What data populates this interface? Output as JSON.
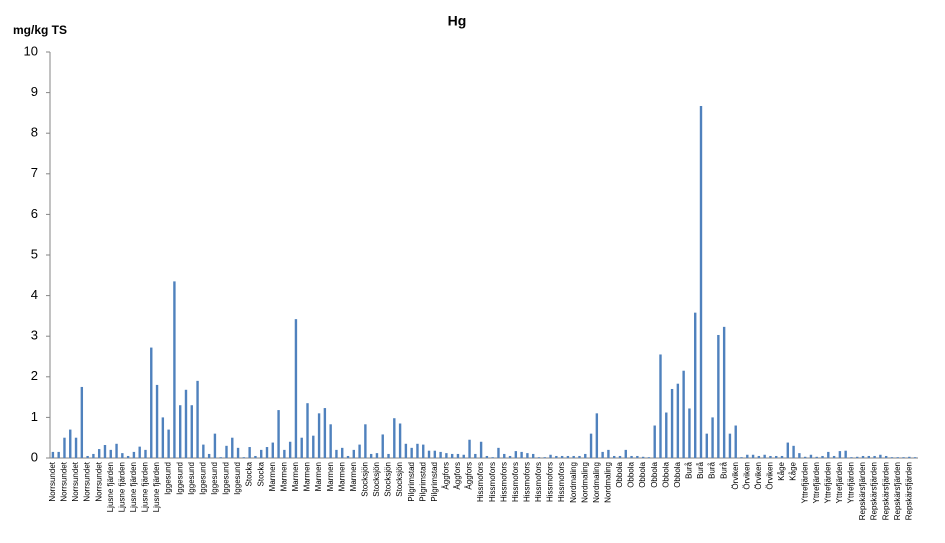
{
  "chart_data": {
    "type": "bar",
    "title": "Hg",
    "y_label": "mg/kg TS",
    "color": "#4f81bd",
    "grid": false,
    "ylim": [
      0,
      10
    ],
    "yticks": [
      0,
      1,
      2,
      3,
      4,
      5,
      6,
      7,
      8,
      9,
      10
    ],
    "categories": [
      "Norrsundet",
      null,
      "Norrsundet",
      null,
      "Norrsundet",
      null,
      "Norrsundet",
      null,
      "Norrsundet",
      null,
      "Ljusne fjärden",
      null,
      "Ljusne fjärden",
      null,
      "Ljusne fjärden",
      null,
      "Ljusne fjärden",
      null,
      "Ljusne fjärden",
      null,
      "Iggesund",
      null,
      "Iggesund",
      null,
      "Iggesund",
      null,
      "Iggesund",
      null,
      "Iggesund",
      null,
      "Iggesund",
      null,
      "Iggesund",
      null,
      "Stocka",
      null,
      "Stocka",
      null,
      "Marmen",
      null,
      "Marmen",
      null,
      "Marmen",
      null,
      "Marmen",
      null,
      "Marmen",
      null,
      "Marmen",
      null,
      "Marmen",
      null,
      "Marmen",
      null,
      "Stocksjön",
      null,
      "Stocksjön",
      null,
      "Stocksjön",
      null,
      "Stocksjön",
      null,
      "Pilgrimstad",
      null,
      "Pilgrimstad",
      null,
      "Pilgrimstad",
      null,
      "Äggfors",
      null,
      "Äggfors",
      null,
      "Äggfors",
      null,
      "Hissmofors",
      null,
      "Hissmofors",
      null,
      "Hissmofors",
      null,
      "Hissmofors",
      null,
      "Hissmofors",
      null,
      "Hissmofors",
      null,
      "Hissmofors",
      null,
      "Hissmofors",
      null,
      "Nordmaling",
      null,
      "Nordmaling",
      null,
      "Nordmaling",
      null,
      "Nordmaling",
      null,
      "Obbola",
      null,
      "Obbola",
      null,
      "Obbola",
      null,
      "Obbola",
      null,
      "Obbola",
      null,
      "Obbola",
      null,
      "Burå",
      null,
      "Burå",
      null,
      "Burå",
      null,
      "Burå",
      null,
      "Örviken",
      null,
      "Örviken",
      null,
      "Örviken",
      null,
      "Örviken",
      null,
      "Kåge",
      null,
      "Kåge",
      null,
      "Yttrefjärden",
      null,
      "Yttrefjärden",
      null,
      "Yttrefjärden",
      null,
      "Yttrefjärden",
      null,
      "Yttrefjärden",
      null,
      "Repskärsfjärden",
      null,
      "Repskärsfjärden",
      null,
      "Repskärsfjärden",
      null,
      "Repskärsfjärden",
      null,
      "Repskärsfjärden",
      null
    ],
    "values": [
      0.15,
      0.15,
      0.5,
      0.7,
      0.5,
      1.75,
      0.05,
      0.1,
      0.22,
      0.32,
      0.2,
      0.35,
      0.12,
      0.05,
      0.15,
      0.28,
      0.2,
      2.72,
      1.8,
      1.0,
      0.7,
      4.35,
      1.3,
      1.68,
      1.3,
      1.9,
      0.33,
      0.1,
      0.6,
      0.02,
      0.3,
      0.5,
      0.25,
      0.02,
      0.27,
      0.05,
      0.2,
      0.27,
      0.38,
      1.18,
      0.2,
      0.4,
      3.42,
      0.5,
      1.35,
      0.55,
      1.1,
      1.23,
      0.83,
      0.2,
      0.25,
      0.05,
      0.2,
      0.33,
      0.83,
      0.1,
      0.12,
      0.58,
      0.1,
      0.98,
      0.85,
      0.35,
      0.25,
      0.35,
      0.33,
      0.18,
      0.18,
      0.15,
      0.12,
      0.1,
      0.1,
      0.08,
      0.45,
      0.1,
      0.4,
      0.05,
      0.02,
      0.25,
      0.1,
      0.05,
      0.17,
      0.15,
      0.12,
      0.1,
      0.02,
      0.02,
      0.08,
      0.05,
      0.05,
      0.05,
      0.05,
      0.05,
      0.1,
      0.6,
      1.1,
      0.15,
      0.2,
      0.05,
      0.05,
      0.2,
      0.05,
      0.05,
      0.03,
      0.02,
      0.8,
      2.55,
      1.12,
      1.7,
      1.83,
      2.15,
      1.22,
      3.58,
      8.67,
      0.6,
      1.0,
      3.03,
      3.23,
      0.6,
      0.8,
      0.02,
      0.08,
      0.08,
      0.05,
      0.08,
      0.05,
      0.05,
      0.05,
      0.38,
      0.3,
      0.12,
      0.03,
      0.08,
      0.03,
      0.05,
      0.15,
      0.05,
      0.17,
      0.18,
      0.02,
      0.03,
      0.05,
      0.05,
      0.05,
      0.08,
      0.05,
      0.02,
      0.02,
      0.02,
      0.03,
      0.02
    ]
  }
}
